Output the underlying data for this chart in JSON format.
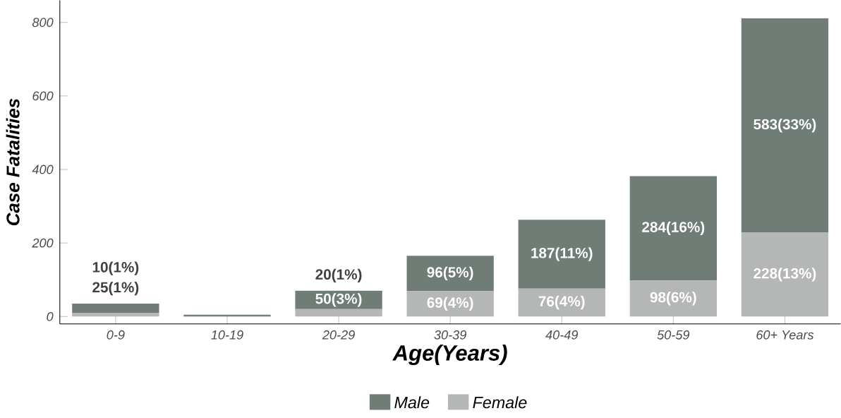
{
  "chart_data": {
    "type": "bar",
    "stacked": true,
    "xlabel": "Age(Years)",
    "ylabel": "Case Fatalities",
    "categories": [
      "0-9",
      "10-19",
      "20-29",
      "30-39",
      "40-49",
      "50-59",
      "60+ Years"
    ],
    "series": [
      {
        "name": "Female",
        "color": "#b5b7b7",
        "values": [
          10,
          null,
          20,
          69,
          76,
          98,
          228
        ],
        "value_labels": [
          "10(1%)",
          null,
          "20(1%)",
          "69(4%)",
          "76(4%)",
          "98(6%)",
          "228(13%)"
        ]
      },
      {
        "name": "Male",
        "color": "#6f7d76",
        "values": [
          25,
          5,
          50,
          96,
          187,
          284,
          583
        ],
        "value_labels": [
          "25(1%)",
          null,
          "50(3%)",
          "96(5%)",
          "187(11%)",
          "284(16%)",
          "583(33%)"
        ]
      }
    ],
    "ylim": [
      -20,
      860
    ],
    "yticks": [
      0,
      200,
      400,
      600,
      800
    ],
    "grid": false,
    "legend": "bottom"
  }
}
